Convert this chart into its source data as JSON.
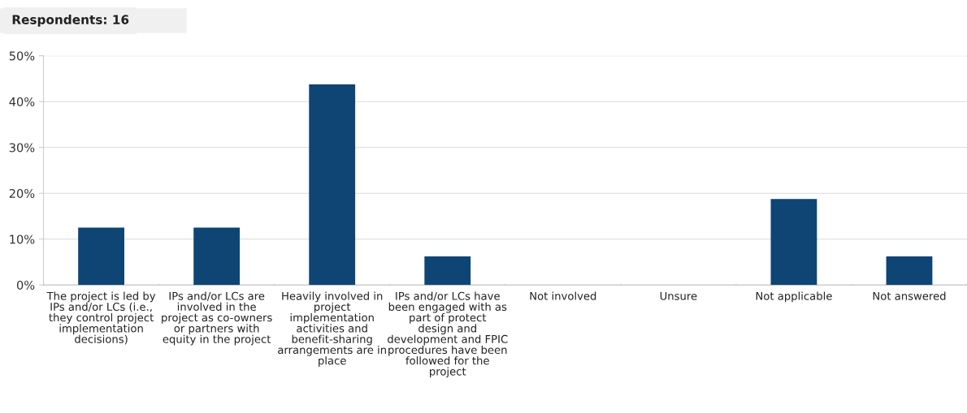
{
  "chart_data": {
    "type": "bar",
    "title": "Respondents: 16",
    "categories": [
      "The project is led by IPs and/or LCs (i.e., they control project implementation decisions)",
      "IPs and/or LCs are involved in the project as co-owners or partners with equity in the project",
      "Heavily involved in project implementation activities and benefit-sharing arrangements are in place",
      "IPs and/or LCs have been engaged with as part of protect design and development and FPIC procedures have been followed for the project",
      "Not involved",
      "Unsure",
      "Not applicable",
      "Not answered"
    ],
    "values": [
      12.5,
      12.5,
      43.75,
      6.25,
      0,
      0,
      18.75,
      6.25
    ],
    "color": "#0e4574",
    "ylim": [
      0,
      50
    ],
    "yticks": [
      {
        "value": 0,
        "label": "0%"
      },
      {
        "value": 10,
        "label": "10%"
      },
      {
        "value": 20,
        "label": "20%"
      },
      {
        "value": 30,
        "label": "30%"
      },
      {
        "value": 40,
        "label": "40%"
      },
      {
        "value": 50,
        "label": "50%"
      }
    ],
    "grid": "y",
    "legend": false
  }
}
